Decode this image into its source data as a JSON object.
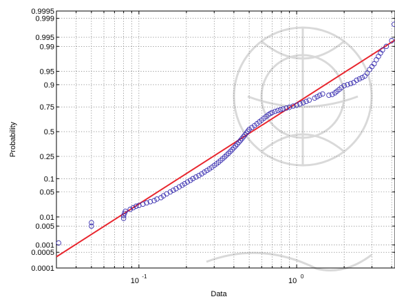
{
  "chart_data": {
    "type": "scatter",
    "title": "",
    "xlabel": "Data",
    "ylabel": "Probability",
    "xscale": "log",
    "yscale": "normal-probability",
    "xlim": [
      0.03,
      4.2
    ],
    "ylim": [
      0.0001,
      0.9995
    ],
    "grid": true,
    "x_major_ticks": [
      {
        "value": 0.1,
        "base": "10",
        "exp": "-1"
      },
      {
        "value": 1,
        "base": "10",
        "exp": "0"
      }
    ],
    "y_ticks": [
      {
        "value": 0.0001,
        "label": "0.0001"
      },
      {
        "value": 0.0005,
        "label": "0.0005"
      },
      {
        "value": 0.001,
        "label": "0.001"
      },
      {
        "value": 0.005,
        "label": "0.005"
      },
      {
        "value": 0.01,
        "label": "0.01"
      },
      {
        "value": 0.05,
        "label": "0.05"
      },
      {
        "value": 0.1,
        "label": "0.1"
      },
      {
        "value": 0.25,
        "label": "0.25"
      },
      {
        "value": 0.5,
        "label": "0.5"
      },
      {
        "value": 0.75,
        "label": "0.75"
      },
      {
        "value": 0.9,
        "label": "0.9"
      },
      {
        "value": 0.95,
        "label": "0.95"
      },
      {
        "value": 0.99,
        "label": "0.99"
      },
      {
        "value": 0.995,
        "label": "0.995"
      },
      {
        "value": 0.999,
        "label": "0.999"
      },
      {
        "value": 0.9995,
        "label": "0.9995"
      }
    ],
    "series": [
      {
        "marker": "circle",
        "color": "#3a2fb0",
        "points": [
          [
            0.031,
            0.0012
          ],
          [
            0.05,
            0.005
          ],
          [
            0.05,
            0.0065
          ],
          [
            0.08,
            0.009
          ],
          [
            0.08,
            0.011
          ],
          [
            0.081,
            0.013
          ],
          [
            0.082,
            0.015
          ],
          [
            0.088,
            0.017
          ],
          [
            0.092,
            0.019
          ],
          [
            0.096,
            0.021
          ],
          [
            0.1,
            0.022
          ],
          [
            0.106,
            0.024
          ],
          [
            0.112,
            0.026
          ],
          [
            0.118,
            0.028
          ],
          [
            0.125,
            0.03
          ],
          [
            0.13,
            0.033
          ],
          [
            0.138,
            0.036
          ],
          [
            0.143,
            0.04
          ],
          [
            0.15,
            0.045
          ],
          [
            0.158,
            0.05
          ],
          [
            0.165,
            0.055
          ],
          [
            0.172,
            0.06
          ],
          [
            0.18,
            0.066
          ],
          [
            0.188,
            0.072
          ],
          [
            0.195,
            0.078
          ],
          [
            0.203,
            0.085
          ],
          [
            0.212,
            0.092
          ],
          [
            0.22,
            0.1
          ],
          [
            0.23,
            0.108
          ],
          [
            0.24,
            0.116
          ],
          [
            0.25,
            0.125
          ],
          [
            0.26,
            0.135
          ],
          [
            0.27,
            0.145
          ],
          [
            0.28,
            0.155
          ],
          [
            0.29,
            0.166
          ],
          [
            0.3,
            0.178
          ],
          [
            0.31,
            0.19
          ],
          [
            0.32,
            0.203
          ],
          [
            0.33,
            0.217
          ],
          [
            0.34,
            0.231
          ],
          [
            0.35,
            0.246
          ],
          [
            0.36,
            0.262
          ],
          [
            0.37,
            0.278
          ],
          [
            0.38,
            0.295
          ],
          [
            0.39,
            0.312
          ],
          [
            0.4,
            0.33
          ],
          [
            0.41,
            0.348
          ],
          [
            0.42,
            0.367
          ],
          [
            0.43,
            0.386
          ],
          [
            0.44,
            0.405
          ],
          [
            0.45,
            0.425
          ],
          [
            0.46,
            0.445
          ],
          [
            0.47,
            0.465
          ],
          [
            0.48,
            0.485
          ],
          [
            0.49,
            0.505
          ],
          [
            0.5,
            0.525
          ],
          [
            0.52,
            0.545
          ],
          [
            0.54,
            0.565
          ],
          [
            0.56,
            0.585
          ],
          [
            0.58,
            0.605
          ],
          [
            0.6,
            0.624
          ],
          [
            0.62,
            0.643
          ],
          [
            0.64,
            0.66
          ],
          [
            0.66,
            0.676
          ],
          [
            0.68,
            0.69
          ],
          [
            0.7,
            0.7
          ],
          [
            0.73,
            0.71
          ],
          [
            0.76,
            0.718
          ],
          [
            0.79,
            0.725
          ],
          [
            0.82,
            0.732
          ],
          [
            0.86,
            0.74
          ],
          [
            0.9,
            0.748
          ],
          [
            0.95,
            0.757
          ],
          [
            1.0,
            0.766
          ],
          [
            1.05,
            0.775
          ],
          [
            1.1,
            0.785
          ],
          [
            1.15,
            0.795
          ],
          [
            1.2,
            0.805
          ],
          [
            1.3,
            0.82
          ],
          [
            1.35,
            0.83
          ],
          [
            1.4,
            0.84
          ],
          [
            1.46,
            0.848
          ],
          [
            1.6,
            0.84
          ],
          [
            1.68,
            0.845
          ],
          [
            1.75,
            0.855
          ],
          [
            1.8,
            0.865
          ],
          [
            1.86,
            0.875
          ],
          [
            1.92,
            0.885
          ],
          [
            2.0,
            0.895
          ],
          [
            2.1,
            0.9
          ],
          [
            2.2,
            0.905
          ],
          [
            2.3,
            0.91
          ],
          [
            2.4,
            0.92
          ],
          [
            2.5,
            0.925
          ],
          [
            2.6,
            0.93
          ],
          [
            2.7,
            0.935
          ],
          [
            2.8,
            0.945
          ],
          [
            2.9,
            0.955
          ],
          [
            3.0,
            0.962
          ],
          [
            3.1,
            0.968
          ],
          [
            3.2,
            0.975
          ],
          [
            3.3,
            0.98
          ],
          [
            3.4,
            0.984
          ],
          [
            3.5,
            0.987
          ],
          [
            3.7,
            0.99
          ],
          [
            4.0,
            0.9935
          ],
          [
            4.15,
            0.9983
          ]
        ]
      },
      {
        "marker": "line",
        "color": "#e8262e",
        "points": [
          [
            0.03,
            0.00032
          ],
          [
            4.2,
            0.9938
          ]
        ]
      }
    ]
  }
}
